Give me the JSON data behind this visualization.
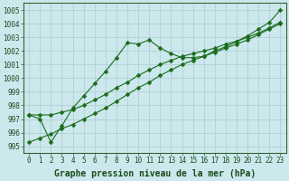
{
  "x": [
    0,
    1,
    2,
    3,
    4,
    5,
    6,
    7,
    8,
    9,
    10,
    11,
    12,
    13,
    14,
    15,
    16,
    17,
    18,
    19,
    20,
    21,
    22,
    23
  ],
  "line1": [
    997.3,
    997.0,
    995.3,
    996.5,
    997.8,
    998.7,
    999.6,
    1000.5,
    1001.5,
    1002.6,
    1002.5,
    1002.8,
    1002.2,
    1001.8,
    1001.5,
    1001.5,
    1001.6,
    1002.0,
    1002.3,
    1002.7,
    1003.1,
    1003.6,
    1004.1,
    1005.0
  ],
  "line2": [
    997.3,
    997.3,
    997.3,
    997.5,
    997.7,
    998.0,
    998.4,
    998.8,
    999.3,
    999.7,
    1000.2,
    1000.6,
    1001.0,
    1001.3,
    1001.6,
    1001.8,
    1002.0,
    1002.2,
    1002.5,
    1002.7,
    1003.0,
    1003.3,
    1003.7,
    1004.1
  ],
  "line3": [
    995.3,
    995.6,
    995.9,
    996.3,
    996.6,
    997.0,
    997.4,
    997.8,
    998.3,
    998.8,
    999.3,
    999.7,
    1000.2,
    1000.6,
    1001.0,
    1001.3,
    1001.6,
    1001.9,
    1002.2,
    1002.5,
    1002.8,
    1003.2,
    1003.6,
    1004.0
  ],
  "bg_color": "#cce8ed",
  "grid_color": "#b0d4da",
  "line_color": "#1a6b1a",
  "marker": "D",
  "marker_size": 2.5,
  "ylabel_values": [
    995,
    996,
    997,
    998,
    999,
    1000,
    1001,
    1002,
    1003,
    1004,
    1005
  ],
  "ylim": [
    994.5,
    1005.5
  ],
  "xlim": [
    -0.5,
    23.5
  ],
  "xlabel": "Graphe pression niveau de la mer (hPa)",
  "xlabel_fontsize": 7,
  "tick_fontsize": 5.5
}
